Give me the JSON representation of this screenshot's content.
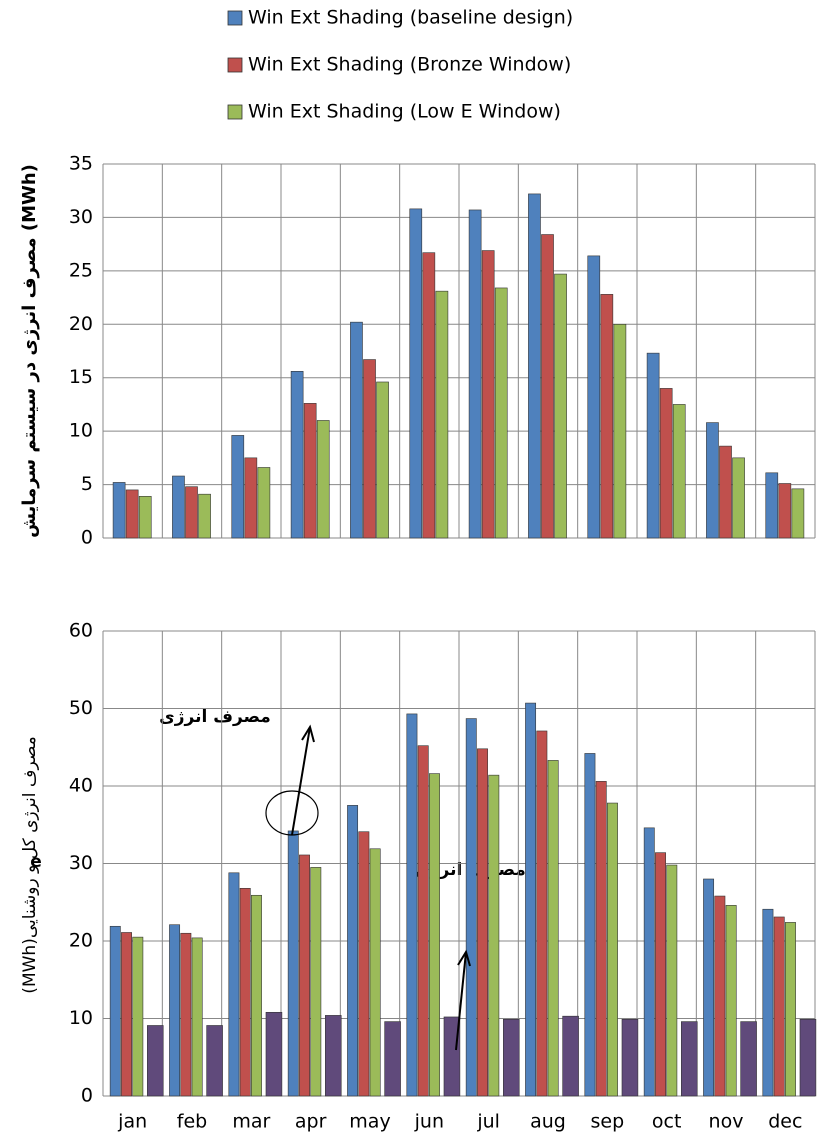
{
  "chart_data": [
    {
      "type": "bar",
      "y_label": "مصرف انرژی در سیستم سرمایش (MWh)",
      "categories": [
        null,
        null,
        null,
        null,
        null,
        null,
        null,
        null,
        null,
        null,
        null,
        null
      ],
      "series": [
        {
          "name": "Win Ext Shading (baseline design)",
          "color": "#4f81bd",
          "values": [
            5.2,
            5.8,
            9.6,
            15.6,
            20.2,
            30.8,
            30.7,
            32.2,
            26.4,
            17.3,
            10.8,
            6.1
          ]
        },
        {
          "name": "Win Ext Shading (Bronze Window)",
          "color": "#c0504d",
          "values": [
            4.5,
            4.8,
            7.5,
            12.6,
            16.7,
            26.7,
            26.9,
            28.4,
            22.8,
            14.0,
            8.6,
            5.1
          ]
        },
        {
          "name": "Win Ext Shading (Low E Window)",
          "color": "#9bbb59",
          "values": [
            3.9,
            4.1,
            6.6,
            11.0,
            14.6,
            23.1,
            23.4,
            24.7,
            20.0,
            12.5,
            7.5,
            4.6
          ]
        }
      ],
      "ylim": [
        0,
        35
      ],
      "yticks": [
        0,
        5,
        10,
        15,
        20,
        25,
        30,
        35
      ],
      "grid": true,
      "legend": "top"
    },
    {
      "type": "bar",
      "y_label": "(MWh)مصرف انرژی کل و روشنایی",
      "categories": [
        "jan",
        "feb",
        "mar",
        "apr",
        "may",
        "jun",
        "jul",
        "aug",
        "sep",
        "oct",
        "nov",
        "dec"
      ],
      "series": [
        {
          "color": "#4f81bd",
          "values": [
            21.9,
            22.1,
            28.8,
            34.2,
            37.5,
            49.3,
            48.7,
            50.7,
            44.2,
            34.6,
            28.0,
            24.1
          ]
        },
        {
          "color": "#c0504d",
          "values": [
            21.1,
            21.0,
            26.8,
            31.1,
            34.1,
            45.2,
            44.8,
            47.1,
            40.6,
            31.4,
            25.8,
            23.1
          ]
        },
        {
          "color": "#9bbb59",
          "values": [
            20.5,
            20.4,
            25.9,
            29.5,
            31.9,
            41.6,
            41.4,
            43.3,
            37.8,
            29.8,
            24.6,
            22.4
          ]
        },
        {
          "color": "#604a7b",
          "values": [
            9.1,
            9.1,
            10.8,
            10.4,
            9.6,
            10.2,
            9.9,
            10.3,
            9.9,
            9.6,
            9.6,
            9.9
          ]
        }
      ],
      "ylim": [
        0,
        60
      ],
      "yticks": [
        0,
        10,
        20,
        30,
        40,
        50,
        60
      ],
      "grid": true,
      "annotations": [
        "مصرف انرژی",
        "مصرف انرژی",
        "e"
      ]
    }
  ]
}
